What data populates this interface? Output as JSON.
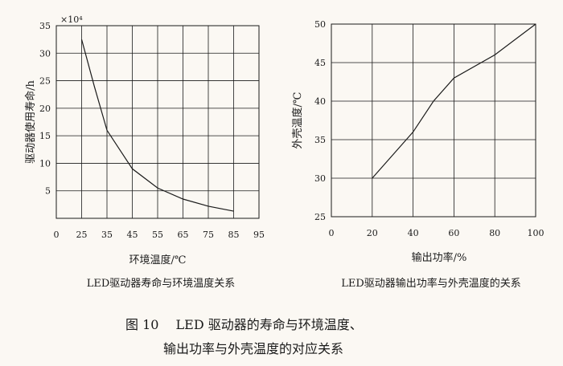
{
  "chart_data": [
    {
      "type": "line",
      "caption": "LED驱动器寿命与环境温度关系",
      "xlabel": "环境温度/℃",
      "ylabel": "驱动器使用寿命/h",
      "y_multiplier": "×10⁴",
      "xlim": [
        15,
        95
      ],
      "ylim": [
        0,
        35
      ],
      "x_ticks": [
        "0",
        "25",
        "35",
        "45",
        "55",
        "65",
        "75",
        "85",
        "95"
      ],
      "y_ticks": [
        "35",
        "30",
        "25",
        "20",
        "15",
        "10",
        "5"
      ],
      "grid": true,
      "series": [
        {
          "x": [
            25,
            30,
            35,
            45,
            55,
            65,
            75,
            85
          ],
          "y": [
            32.5,
            24,
            16,
            9,
            5.5,
            3.5,
            2.2,
            1.3
          ]
        }
      ]
    },
    {
      "type": "line",
      "caption": "LED驱动器输出功率与外壳温度的关系",
      "xlabel": "输出功率/%",
      "ylabel": "外壳温度/℃",
      "xlim": [
        0,
        100
      ],
      "ylim": [
        25,
        50
      ],
      "x_ticks": [
        "0",
        "20",
        "40",
        "60",
        "80",
        "100"
      ],
      "y_ticks": [
        "50",
        "45",
        "40",
        "35",
        "30",
        "25"
      ],
      "grid": true,
      "series": [
        {
          "x": [
            20,
            40,
            50,
            60,
            80,
            100
          ],
          "y": [
            30,
            36,
            40,
            43,
            46,
            50
          ]
        }
      ]
    }
  ],
  "figure_caption": {
    "line1": "图 10　 LED 驱动器的寿命与环境温度、",
    "line2": "输出功率与外壳温度的对应关系"
  }
}
